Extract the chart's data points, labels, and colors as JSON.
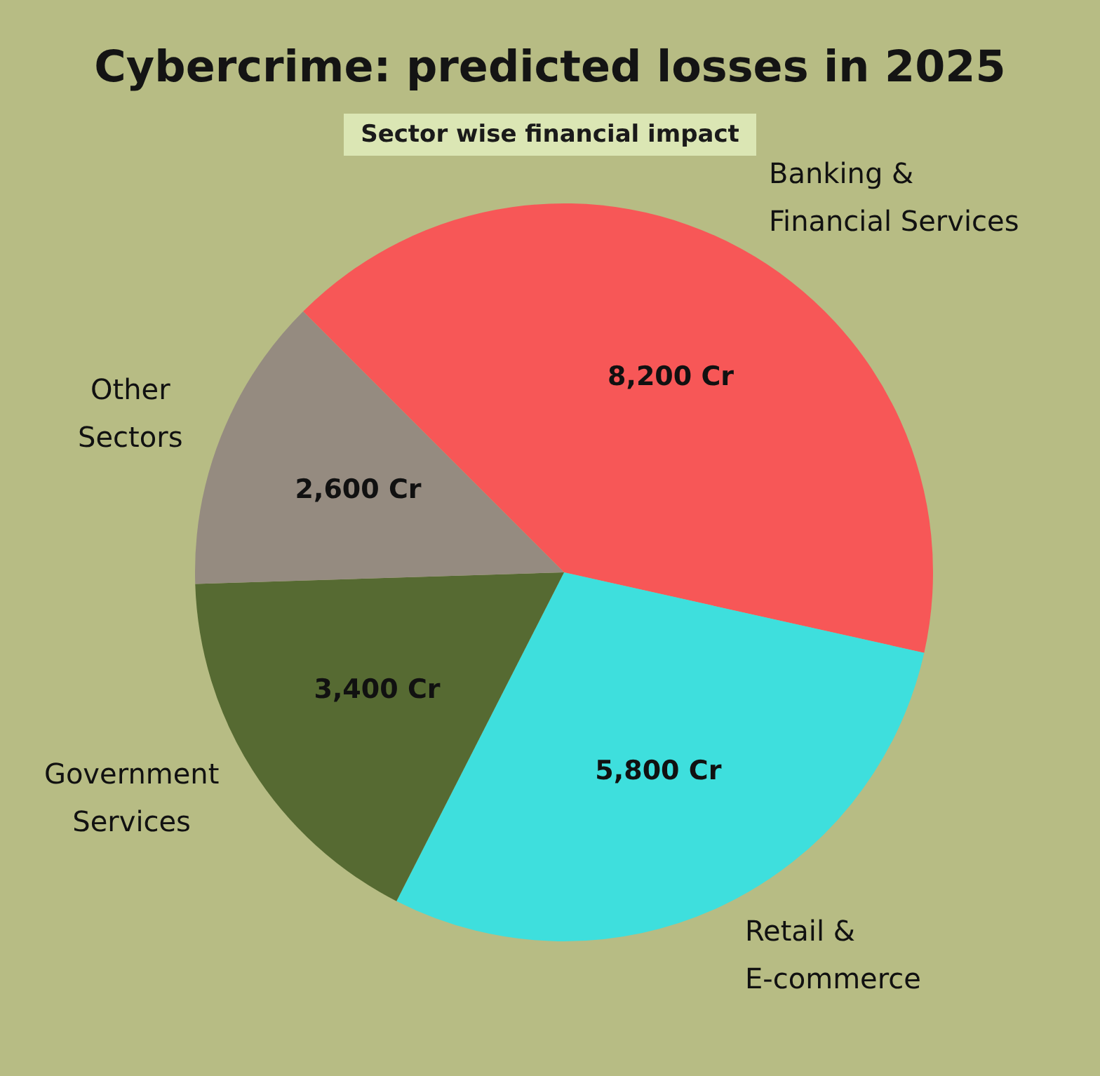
{
  "chart_data": {
    "type": "pie",
    "title": "Cybercrime: predicted losses in 2025",
    "subtitle": "Sector wise financial impact",
    "categories": [
      "Banking & Financial Services",
      "Retail & E-commerce",
      "Government Services",
      "Other Sectors"
    ],
    "values": [
      8200,
      5800,
      3400,
      2600
    ],
    "colors": [
      "#f75757",
      "#3edfdd",
      "#566a32",
      "#958b80"
    ],
    "value_labels": [
      "8,200 Cr",
      "5,800 Cr",
      "3,400 Cr",
      "2,600 Cr"
    ]
  }
}
